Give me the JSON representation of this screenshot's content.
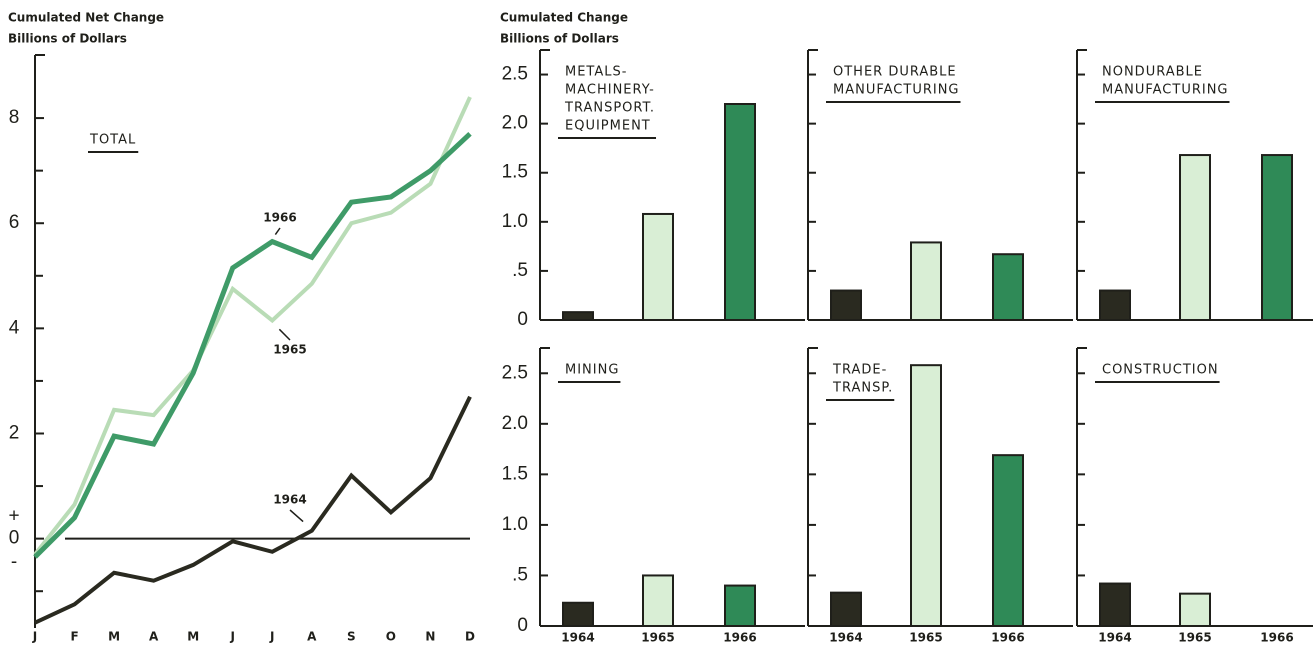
{
  "chart_data": [
    {
      "type": "line",
      "title": "TOTAL",
      "y_label": [
        "Cumulated Net Change",
        "Billions of Dollars"
      ],
      "categories": [
        "J",
        "F",
        "M",
        "A",
        "M",
        "J",
        "J",
        "A",
        "S",
        "O",
        "N",
        "D"
      ],
      "series": [
        {
          "name": "1966",
          "color": "#3f9b68",
          "values": [
            -0.35,
            0.4,
            1.95,
            1.8,
            3.15,
            5.15,
            5.65,
            5.35,
            6.4,
            6.5,
            7.0,
            7.7
          ]
        },
        {
          "name": "1965",
          "color": "#b9dcb6",
          "values": [
            -0.3,
            0.65,
            2.45,
            2.35,
            3.2,
            4.75,
            4.15,
            4.85,
            6.0,
            6.2,
            6.75,
            8.4
          ]
        },
        {
          "name": "1964",
          "color": "#2a2a20",
          "values": [
            -1.6,
            -1.25,
            -0.65,
            -0.8,
            -0.5,
            -0.05,
            -0.25,
            0.15,
            1.2,
            0.5,
            1.15,
            2.7
          ]
        }
      ],
      "ylim": [
        -1.7,
        9.2
      ],
      "yticks": [
        0,
        2,
        4,
        6,
        8
      ],
      "yminor": [
        -1,
        1,
        3,
        5,
        7
      ],
      "zero_signs": [
        "+",
        "-"
      ],
      "zero_line": true
    },
    {
      "type": "bar",
      "title": [
        "METALS-",
        "MACHINERY-",
        "TRANSPORT.",
        "EQUIPMENT"
      ],
      "y_label": [
        "Cumulated Change",
        "Billions of Dollars"
      ],
      "categories": [
        null,
        null,
        null
      ],
      "values": [
        0.08,
        1.08,
        2.2
      ],
      "colors": [
        "#2a2a20",
        "#d9eed5",
        "#2f8a57"
      ],
      "ylim": [
        0,
        2.75
      ],
      "yticks": [
        0,
        {
          "value": 0.5,
          "label": ".5"
        },
        {
          "value": 1,
          "label": "1.0"
        },
        {
          "value": 1.5,
          "label": "1.5"
        },
        {
          "value": 2,
          "label": "2.0"
        },
        {
          "value": 2.5,
          "label": "2.5"
        }
      ],
      "tick_labels": true
    },
    {
      "type": "bar",
      "title": [
        "OTHER DURABLE",
        "MANUFACTURING"
      ],
      "categories": [
        null,
        null,
        null
      ],
      "values": [
        0.3,
        0.79,
        0.67
      ],
      "colors": [
        "#2a2a20",
        "#d9eed5",
        "#2f8a57"
      ],
      "ylim": [
        0,
        2.75
      ],
      "yticks": [
        0,
        0.5,
        1,
        1.5,
        2,
        2.5
      ],
      "tick_labels": false
    },
    {
      "type": "bar",
      "title": [
        "NONDURABLE",
        "MANUFACTURING"
      ],
      "categories": [
        null,
        null,
        null
      ],
      "values": [
        0.3,
        1.68,
        1.68
      ],
      "colors": [
        "#2a2a20",
        "#d9eed5",
        "#2f8a57"
      ],
      "ylim": [
        0,
        2.75
      ],
      "yticks": [
        0,
        0.5,
        1,
        1.5,
        2,
        2.5
      ],
      "tick_labels": false
    },
    {
      "type": "bar",
      "title": [
        "MINING"
      ],
      "categories": [
        "1964",
        "1965",
        "1966"
      ],
      "values": [
        0.23,
        0.5,
        0.4
      ],
      "colors": [
        "#2a2a20",
        "#d9eed5",
        "#2f8a57"
      ],
      "ylim": [
        0,
        2.75
      ],
      "yticks": [
        0,
        {
          "value": 0.5,
          "label": ".5"
        },
        {
          "value": 1,
          "label": "1.0"
        },
        {
          "value": 1.5,
          "label": "1.5"
        },
        {
          "value": 2,
          "label": "2.0"
        },
        {
          "value": 2.5,
          "label": "2.5"
        }
      ],
      "tick_labels": true
    },
    {
      "type": "bar",
      "title": [
        "TRADE-",
        "TRANSP."
      ],
      "categories": [
        "1964",
        "1965",
        "1966"
      ],
      "values": [
        0.33,
        2.58,
        1.69
      ],
      "colors": [
        "#2a2a20",
        "#d9eed5",
        "#2f8a57"
      ],
      "ylim": [
        0,
        2.75
      ],
      "yticks": [
        0,
        0.5,
        1,
        1.5,
        2,
        2.5
      ],
      "tick_labels": false
    },
    {
      "type": "bar",
      "title": [
        "CONSTRUCTION"
      ],
      "categories": [
        "1964",
        "1965",
        "1966"
      ],
      "values": [
        0.42,
        0.32,
        null
      ],
      "colors": [
        "#2a2a20",
        "#d9eed5",
        "#2f8a57"
      ],
      "ylim": [
        0,
        2.75
      ],
      "yticks": [
        0,
        0.5,
        1,
        1.5,
        2,
        2.5
      ],
      "tick_labels": false
    }
  ]
}
